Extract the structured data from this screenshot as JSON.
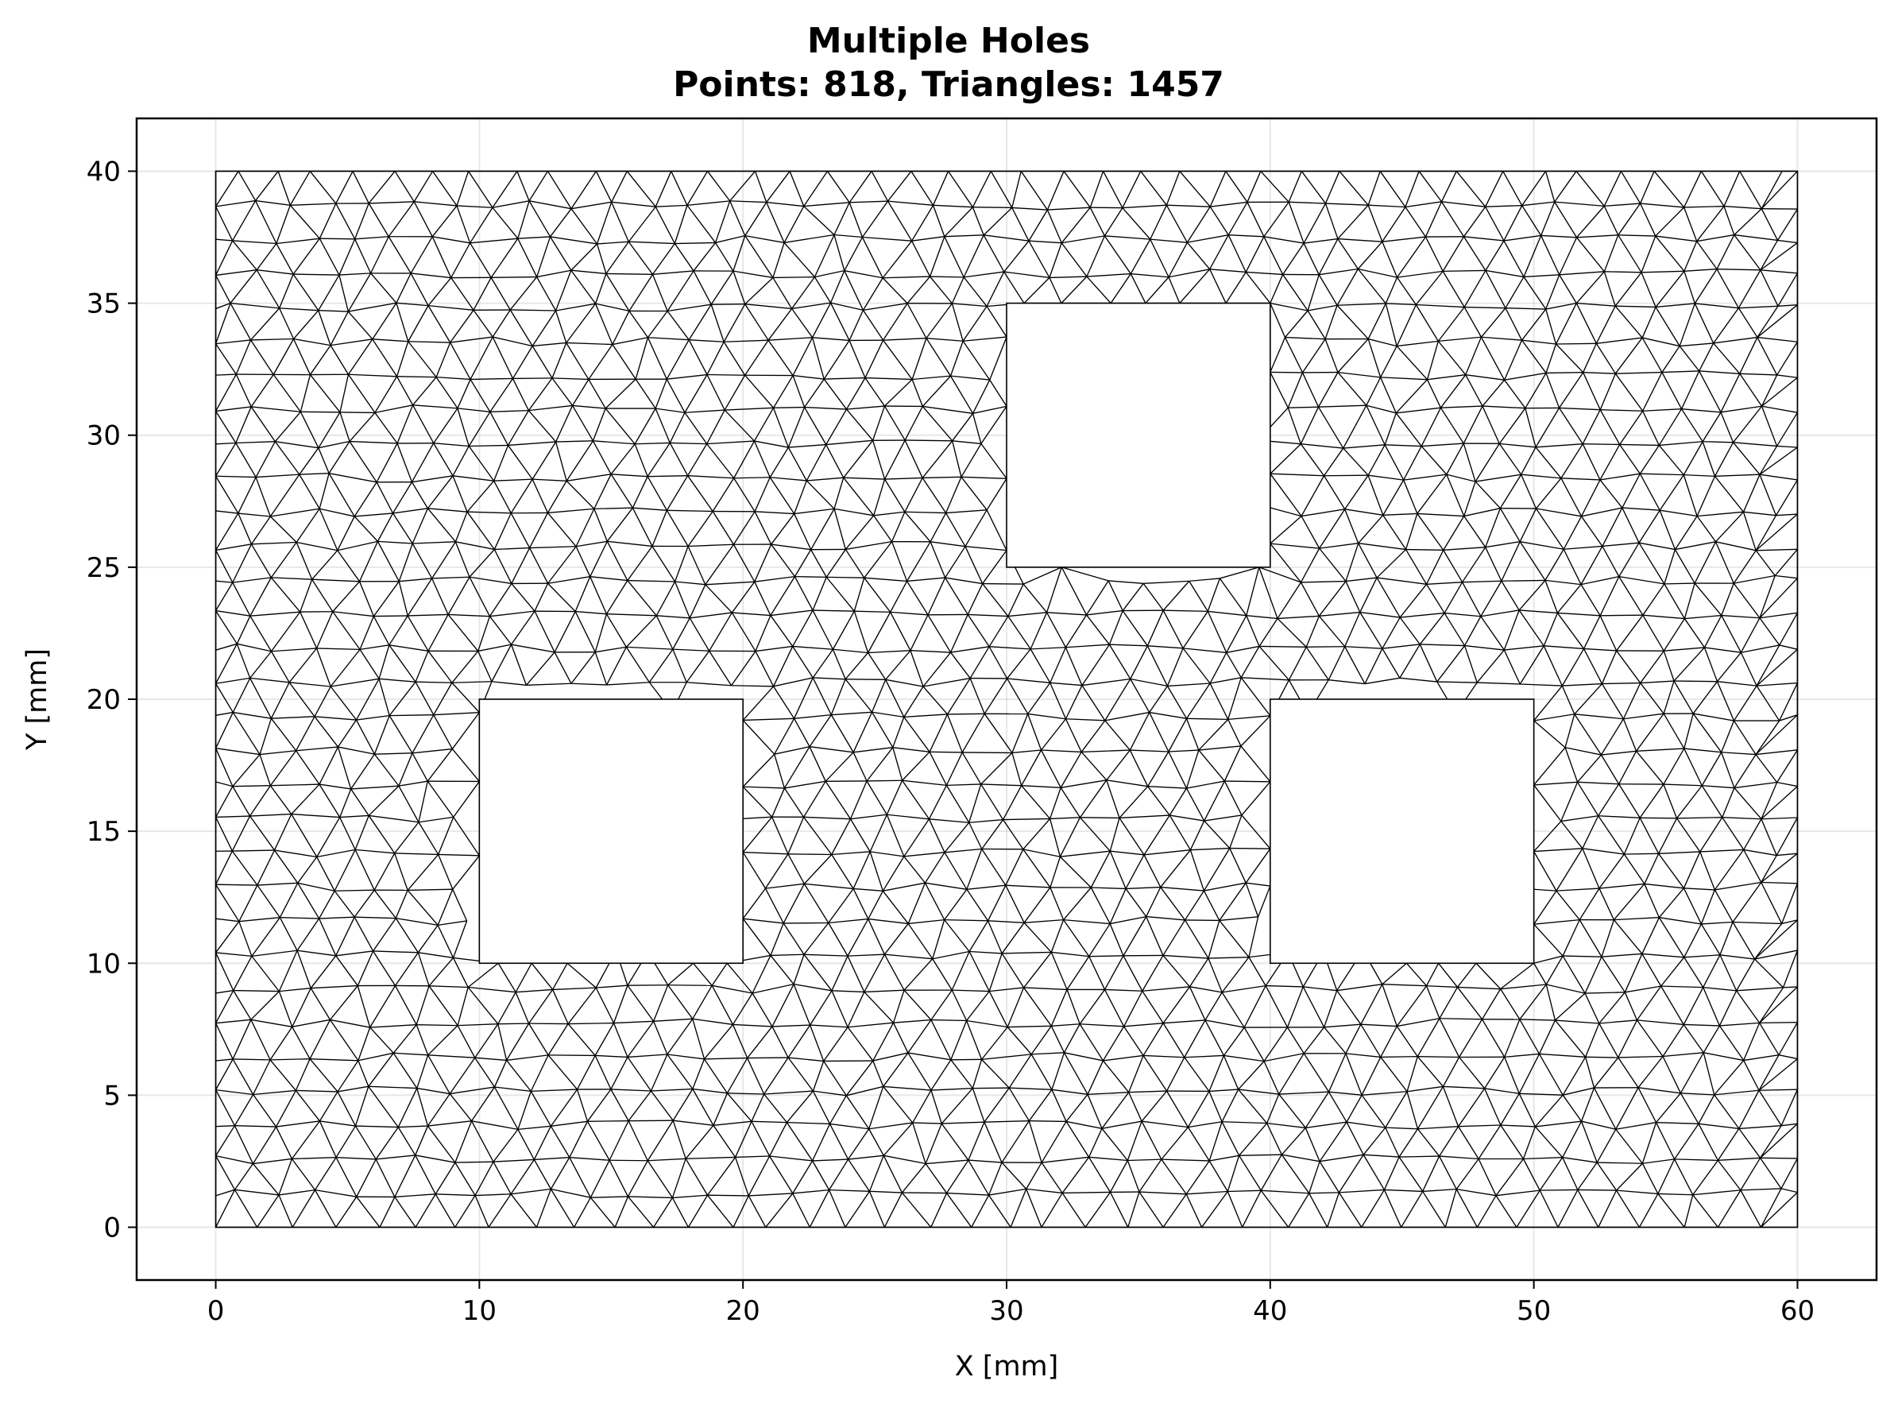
{
  "chart_data": {
    "type": "triangular-mesh",
    "title": "Multiple Holes",
    "subtitle": "Points: 818, Triangles: 1457",
    "xlabel": "X [mm]",
    "ylabel": "Y [mm]",
    "xlim": [
      -3,
      63
    ],
    "ylim": [
      -2,
      42
    ],
    "xticks": [
      0,
      10,
      20,
      30,
      40,
      50,
      60
    ],
    "yticks": [
      0,
      5,
      10,
      15,
      20,
      25,
      30,
      35,
      40
    ],
    "grid": true,
    "domain": {
      "xmin": 0,
      "xmax": 60,
      "ymin": 0,
      "ymax": 40
    },
    "holes": [
      {
        "xmin": 10,
        "xmax": 20,
        "ymin": 10,
        "ymax": 20
      },
      {
        "xmin": 30,
        "xmax": 40,
        "ymin": 25,
        "ymax": 35
      },
      {
        "xmin": 40,
        "xmax": 50,
        "ymin": 10,
        "ymax": 20
      }
    ],
    "mesh_spacing": 1.5,
    "points": 818,
    "triangles": 1457,
    "edge_color": "#000000"
  }
}
